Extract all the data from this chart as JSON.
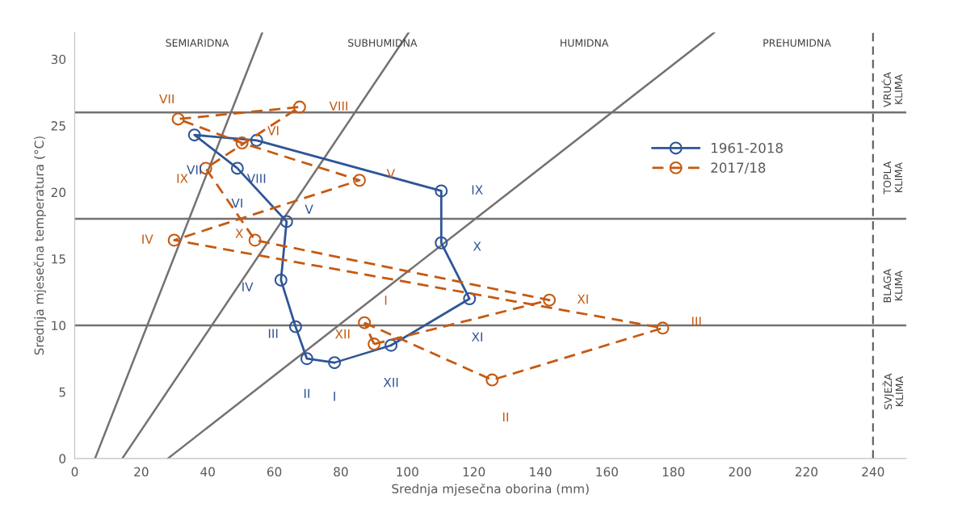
{
  "chart_data": {
    "type": "line",
    "xlabel": "Srednja mjesečna oborina (mm)",
    "ylabel": "Srednja mjesečna temperatura (°C)",
    "xlim": [
      0,
      250
    ],
    "xticks": [
      0,
      20,
      40,
      60,
      80,
      100,
      120,
      140,
      160,
      180,
      200,
      220,
      240
    ],
    "ylim": [
      0,
      32
    ],
    "yticks": [
      0,
      5,
      10,
      15,
      20,
      25,
      30
    ],
    "grid": false,
    "legend": "right",
    "marker": "circle",
    "series": [
      {
        "name": "1961-2018",
        "color": "#2f5597",
        "line_style": "solid",
        "x": [
          78.1,
          69.8,
          66.4,
          62.0,
          63.7,
          48.9,
          36.0,
          54.7,
          110.2,
          110.2,
          118.7,
          95.1
        ],
        "values": [
          7.2,
          7.5,
          9.9,
          13.4,
          17.8,
          21.8,
          24.3,
          23.9,
          20.1,
          16.2,
          12.0,
          8.5
        ]
      },
      {
        "color": "#2f5597",
        "line_style": "solid",
        "marker": "none",
        "x": [
          95.1,
          78.1
        ],
        "values": [
          8.5,
          7.2
        ]
      },
      {
        "name": "2017/18",
        "color": "#c55a11",
        "line_style": "dashed",
        "x": [
          87.1,
          125.5,
          176.8,
          29.9,
          85.6,
          50.3,
          31.1,
          67.6,
          39.4,
          54.2,
          142.7,
          90.0
        ],
        "values": [
          10.2,
          5.9,
          9.8,
          16.4,
          20.9,
          23.7,
          25.5,
          26.4,
          21.8,
          16.4,
          11.9,
          8.6
        ]
      },
      {
        "color": "#c55a11",
        "line_style": "dashed",
        "marker": "none",
        "x": [
          90.0,
          87.1
        ],
        "values": [
          8.6,
          10.2
        ]
      },
      {
        "color": "#767171",
        "line_style": "solid",
        "marker": "none",
        "x": [
          6.1,
          56.4
        ],
        "values": [
          0,
          32
        ]
      },
      {
        "color": "#767171",
        "line_style": "solid",
        "marker": "none",
        "x": [
          14.3,
          100.4
        ],
        "values": [
          0,
          32
        ]
      },
      {
        "color": "#767171",
        "line_style": "solid",
        "marker": "none",
        "x": [
          28.0,
          192.3
        ],
        "values": [
          0,
          32
        ]
      }
    ],
    "ref_lines": [
      {
        "axis": "y",
        "value": 10,
        "color": "#767171",
        "line_style": "solid"
      },
      {
        "axis": "y",
        "value": 18,
        "color": "#767171",
        "line_style": "solid"
      },
      {
        "axis": "y",
        "value": 26,
        "color": "#767171",
        "line_style": "solid"
      },
      {
        "axis": "x",
        "value": 240,
        "color": "#595959",
        "line_style": "dashed"
      }
    ],
    "annotations": [
      {
        "text": "I",
        "x": 78.1,
        "y": 7.2
      },
      {
        "text": "II",
        "x": 69.8,
        "y": 7.5
      },
      {
        "text": "III",
        "x": 66.4,
        "y": 9.9
      },
      {
        "text": "IV",
        "x": 62.0,
        "y": 13.4
      },
      {
        "text": "V",
        "x": 63.7,
        "y": 17.8
      },
      {
        "text": "VI",
        "x": 48.9,
        "y": 21.8
      },
      {
        "text": "VII",
        "x": 36.0,
        "y": 24.3
      },
      {
        "text": "VIII",
        "x": 54.7,
        "y": 23.9
      },
      {
        "text": "IX",
        "x": 110.2,
        "y": 20.1
      },
      {
        "text": "X",
        "x": 110.2,
        "y": 16.2
      },
      {
        "text": "XI",
        "x": 118.7,
        "y": 12.0
      },
      {
        "text": "XII",
        "x": 95.1,
        "y": 8.5
      },
      {
        "text": "I",
        "x": 87.1,
        "y": 10.2
      },
      {
        "text": "II",
        "x": 125.5,
        "y": 5.9
      },
      {
        "text": "III",
        "x": 176.8,
        "y": 9.8
      },
      {
        "text": "IV",
        "x": 29.9,
        "y": 16.4
      },
      {
        "text": "V",
        "x": 85.6,
        "y": 20.9
      },
      {
        "text": "VI",
        "x": 50.3,
        "y": 23.7
      },
      {
        "text": "VII",
        "x": 31.1,
        "y": 25.5
      },
      {
        "text": "VIII",
        "x": 67.6,
        "y": 26.4
      },
      {
        "text": "IX",
        "x": 39.4,
        "y": 21.8
      },
      {
        "text": "X",
        "x": 54.2,
        "y": 16.4
      },
      {
        "text": "XI",
        "x": 142.7,
        "y": 11.9
      },
      {
        "text": "XII",
        "x": 90.0,
        "y": 8.6
      },
      "SEMIARIDNA",
      "SUBHUMIDNA",
      "HUMIDNA",
      "PREHUMIDNA",
      "VRUĆA\nKLIMA",
      "TOPLA\nKLIMA",
      "BLAGA\nKLIMA",
      "SVJEŽA\nKLIMA"
    ]
  }
}
